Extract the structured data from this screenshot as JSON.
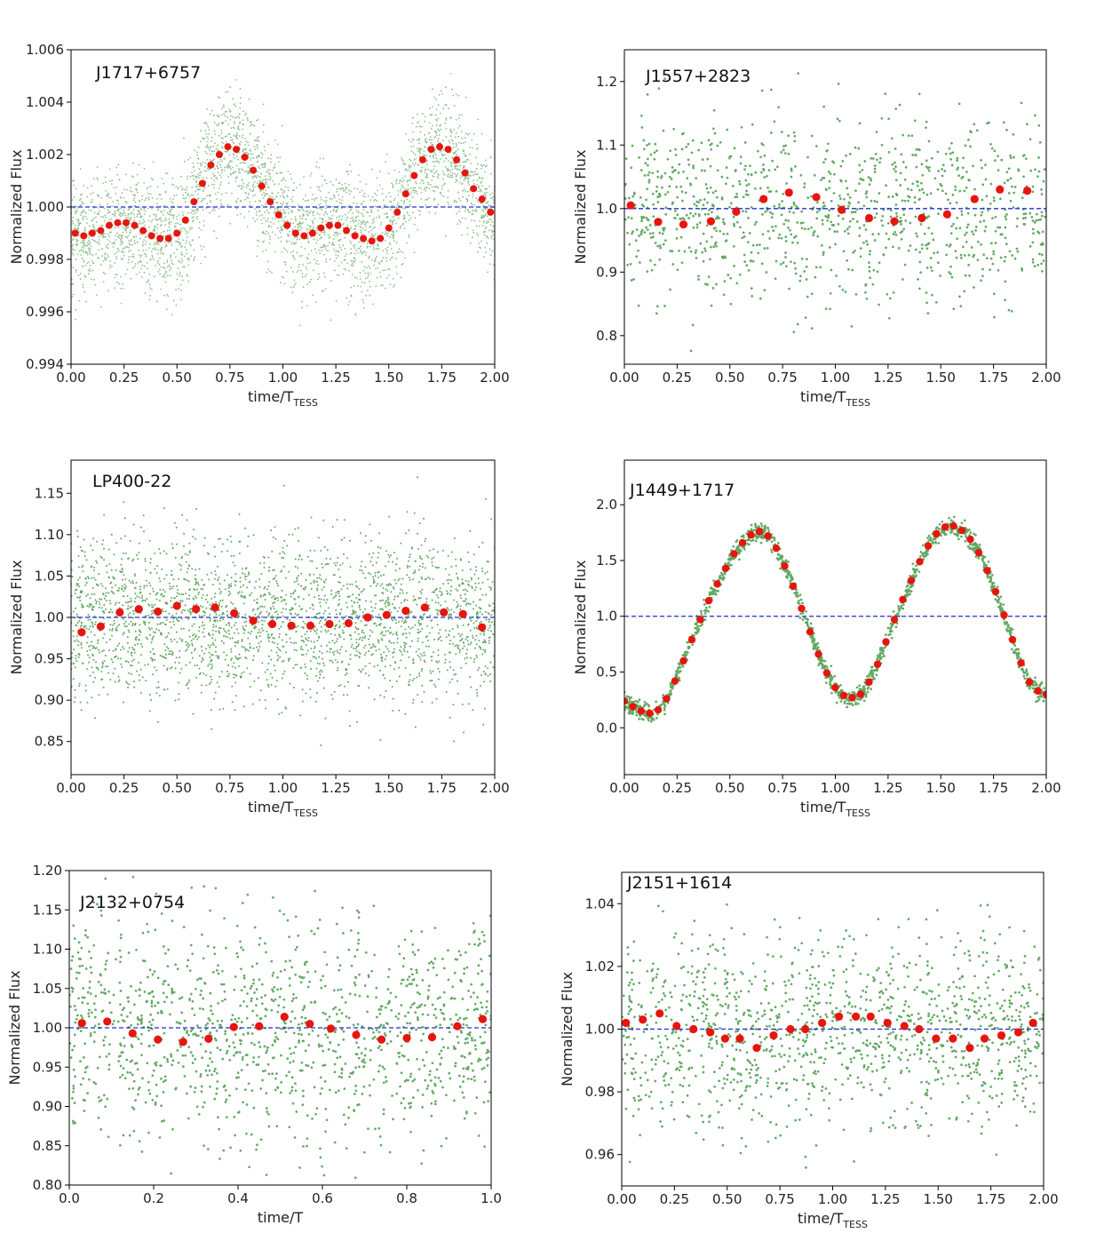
{
  "chart_data": [
    {
      "type": "scatter",
      "title": "J1717+6757",
      "xlabel": "time/T",
      "xlabel_sub": "TESS",
      "ylabel": "Normalized Flux",
      "xlim": [
        0,
        2
      ],
      "ylim": [
        0.994,
        1.006
      ],
      "xticks": [
        "0.00",
        "0.25",
        "0.50",
        "0.75",
        "1.00",
        "1.25",
        "1.50",
        "1.75",
        "2.00"
      ],
      "yticks": [
        "0.994",
        "0.996",
        "0.998",
        "1.000",
        "1.002",
        "1.004",
        "1.006"
      ],
      "reference_line": 1.0,
      "raw_points": {
        "count": 3200,
        "noise": 0.0016,
        "style": "dense-small"
      },
      "binned_x": [
        0.02,
        0.06,
        0.1,
        0.14,
        0.18,
        0.22,
        0.26,
        0.3,
        0.34,
        0.38,
        0.42,
        0.46,
        0.5,
        0.54,
        0.58,
        0.62,
        0.66,
        0.7,
        0.74,
        0.78,
        0.82,
        0.86,
        0.9,
        0.94,
        0.98,
        1.02,
        1.06,
        1.1,
        1.14,
        1.18,
        1.22,
        1.26,
        1.3,
        1.34,
        1.38,
        1.42,
        1.46,
        1.5,
        1.54,
        1.58,
        1.62,
        1.66,
        1.7,
        1.74,
        1.78,
        1.82,
        1.86,
        1.9,
        1.94,
        1.98
      ],
      "binned_y": [
        0.999,
        0.9989,
        0.999,
        0.9991,
        0.9993,
        0.9994,
        0.9994,
        0.9993,
        0.9991,
        0.9989,
        0.9988,
        0.9988,
        0.999,
        0.9995,
        1.0002,
        1.0009,
        1.0016,
        1.002,
        1.0023,
        1.0022,
        1.0019,
        1.0014,
        1.0008,
        1.0002,
        0.9997,
        0.9993,
        0.999,
        0.9989,
        0.999,
        0.9992,
        0.9993,
        0.9993,
        0.9991,
        0.9989,
        0.9988,
        0.9987,
        0.9988,
        0.9992,
        0.9998,
        1.0005,
        1.0012,
        1.0018,
        1.0022,
        1.0023,
        1.0022,
        1.0018,
        1.0013,
        1.0007,
        1.0003,
        0.9998
      ]
    },
    {
      "type": "scatter",
      "title": "J1557+2823",
      "xlabel": "time/T",
      "xlabel_sub": "TESS",
      "ylabel": "Normalized Flux",
      "xlim": [
        0,
        2
      ],
      "ylim": [
        0.755,
        1.25
      ],
      "xticks": [
        "0.00",
        "0.25",
        "0.50",
        "0.75",
        "1.00",
        "1.25",
        "1.50",
        "1.75",
        "2.00"
      ],
      "yticks": [
        "0.8",
        "0.9",
        "1.0",
        "1.1",
        "1.2"
      ],
      "reference_line": 1.0,
      "raw_points": {
        "count": 1100,
        "noise": 0.1,
        "style": "sparse"
      },
      "binned_x": [
        0.03,
        0.16,
        0.28,
        0.41,
        0.53,
        0.66,
        0.78,
        0.91,
        1.03,
        1.16,
        1.28,
        1.41,
        1.53,
        1.66,
        1.78,
        1.91
      ],
      "binned_y": [
        1.005,
        0.979,
        0.975,
        0.98,
        0.995,
        1.015,
        1.025,
        1.018,
        0.998,
        0.985,
        0.98,
        0.985,
        0.991,
        1.015,
        1.03,
        1.028
      ]
    },
    {
      "type": "scatter",
      "title": "LP400-22",
      "xlabel": "time/T",
      "xlabel_sub": "TESS",
      "ylabel": "Normalized Flux",
      "xlim": [
        0,
        2
      ],
      "ylim": [
        0.81,
        1.19
      ],
      "xticks": [
        "0.00",
        "0.25",
        "0.50",
        "0.75",
        "1.00",
        "1.25",
        "1.50",
        "1.75",
        "2.00"
      ],
      "yticks": [
        "0.85",
        "0.90",
        "0.95",
        "1.00",
        "1.05",
        "1.10",
        "1.15"
      ],
      "reference_line": 1.0,
      "raw_points": {
        "count": 2600,
        "noise": 0.07,
        "style": "medium"
      },
      "binned_x": [
        0.05,
        0.14,
        0.23,
        0.32,
        0.41,
        0.5,
        0.59,
        0.68,
        0.77,
        0.86,
        0.95,
        1.04,
        1.13,
        1.22,
        1.31,
        1.4,
        1.49,
        1.58,
        1.67,
        1.76,
        1.85,
        1.94
      ],
      "binned_y": [
        0.982,
        0.989,
        1.006,
        1.01,
        1.007,
        1.014,
        1.01,
        1.012,
        1.005,
        0.996,
        0.992,
        0.99,
        0.99,
        0.992,
        0.993,
        1.0,
        1.003,
        1.008,
        1.012,
        1.006,
        1.004,
        0.988
      ]
    },
    {
      "type": "scatter",
      "title": "J1449+1717",
      "xlabel": "time/T",
      "xlabel_sub": "TESS",
      "ylabel": "Normalized Flux",
      "xlim": [
        0,
        2
      ],
      "ylim": [
        -0.42,
        2.4
      ],
      "xticks": [
        "0.00",
        "0.25",
        "0.50",
        "0.75",
        "1.00",
        "1.25",
        "1.50",
        "1.75",
        "2.00"
      ],
      "yticks": [
        "0.0",
        "0.5",
        "1.0",
        "1.5",
        "2.0"
      ],
      "reference_line": 1.0,
      "raw_points": {
        "count": 1500,
        "noise": 0.06,
        "style": "curve"
      },
      "binned_x": [
        0.0,
        0.04,
        0.08,
        0.12,
        0.16,
        0.2,
        0.24,
        0.28,
        0.32,
        0.36,
        0.4,
        0.44,
        0.48,
        0.52,
        0.56,
        0.6,
        0.64,
        0.68,
        0.72,
        0.76,
        0.8,
        0.84,
        0.88,
        0.92,
        0.96,
        1.0,
        1.04,
        1.08,
        1.12,
        1.16,
        1.2,
        1.24,
        1.28,
        1.32,
        1.36,
        1.4,
        1.44,
        1.48,
        1.52,
        1.56,
        1.6,
        1.64,
        1.68,
        1.72,
        1.76,
        1.8,
        1.84,
        1.88,
        1.92,
        1.96,
        2.0
      ],
      "binned_y": [
        0.24,
        0.19,
        0.15,
        0.13,
        0.16,
        0.26,
        0.42,
        0.6,
        0.79,
        0.97,
        1.14,
        1.29,
        1.43,
        1.56,
        1.66,
        1.73,
        1.76,
        1.72,
        1.61,
        1.45,
        1.27,
        1.07,
        0.86,
        0.66,
        0.49,
        0.36,
        0.29,
        0.27,
        0.3,
        0.41,
        0.57,
        0.77,
        0.97,
        1.15,
        1.32,
        1.49,
        1.63,
        1.74,
        1.8,
        1.81,
        1.77,
        1.69,
        1.57,
        1.41,
        1.22,
        1.01,
        0.79,
        0.58,
        0.41,
        0.33,
        0.3
      ]
    },
    {
      "type": "scatter",
      "title": "J2132+0754",
      "xlabel": "time/T",
      "xlabel_sub": "",
      "ylabel": "Normalized Flux",
      "xlim": [
        0,
        1
      ],
      "ylim": [
        0.8,
        1.2
      ],
      "xticks": [
        "0.0",
        "0.2",
        "0.4",
        "0.6",
        "0.8",
        "1.0"
      ],
      "yticks": [
        "0.80",
        "0.85",
        "0.90",
        "0.95",
        "1.00",
        "1.05",
        "1.10",
        "1.15",
        "1.20"
      ],
      "reference_line": 1.0,
      "raw_points": {
        "count": 1300,
        "noise": 0.1,
        "style": "sparse"
      },
      "binned_x": [
        0.03,
        0.09,
        0.15,
        0.21,
        0.27,
        0.33,
        0.39,
        0.45,
        0.51,
        0.57,
        0.62,
        0.68,
        0.74,
        0.8,
        0.86,
        0.92,
        0.98
      ],
      "binned_y": [
        1.006,
        1.008,
        0.993,
        0.985,
        0.982,
        0.986,
        1.001,
        1.002,
        1.014,
        1.005,
        0.999,
        0.991,
        0.985,
        0.987,
        0.988,
        1.002,
        1.011
      ]
    },
    {
      "type": "scatter",
      "title": "J2151+1614",
      "xlabel": "time/T",
      "xlabel_sub": "TESS",
      "ylabel": "Normalized Flux",
      "xlim": [
        0,
        2
      ],
      "ylim": [
        0.95,
        1.05
      ],
      "xticks": [
        "0.00",
        "0.25",
        "0.50",
        "0.75",
        "1.00",
        "1.25",
        "1.50",
        "1.75",
        "2.00"
      ],
      "yticks": [
        "0.96",
        "0.98",
        "1.00",
        "1.02",
        "1.04"
      ],
      "reference_line": 1.0,
      "raw_points": {
        "count": 1300,
        "noise": 0.022,
        "style": "sparse"
      },
      "binned_x": [
        0.02,
        0.1,
        0.18,
        0.26,
        0.34,
        0.42,
        0.49,
        0.56,
        0.64,
        0.72,
        0.8,
        0.87,
        0.95,
        1.03,
        1.11,
        1.18,
        1.26,
        1.34,
        1.41,
        1.49,
        1.57,
        1.65,
        1.72,
        1.8,
        1.88,
        1.95
      ],
      "binned_y": [
        1.002,
        1.003,
        1.005,
        1.001,
        1.0,
        0.999,
        0.997,
        0.997,
        0.994,
        0.998,
        1.0,
        1.0,
        1.002,
        1.004,
        1.004,
        1.004,
        1.002,
        1.001,
        1.0,
        0.997,
        0.997,
        0.994,
        0.997,
        0.998,
        0.999,
        1.002
      ]
    }
  ],
  "colors": {
    "raw": "#2e8b2e",
    "binned": "#e8150f",
    "reference": "#1f2fd0"
  }
}
